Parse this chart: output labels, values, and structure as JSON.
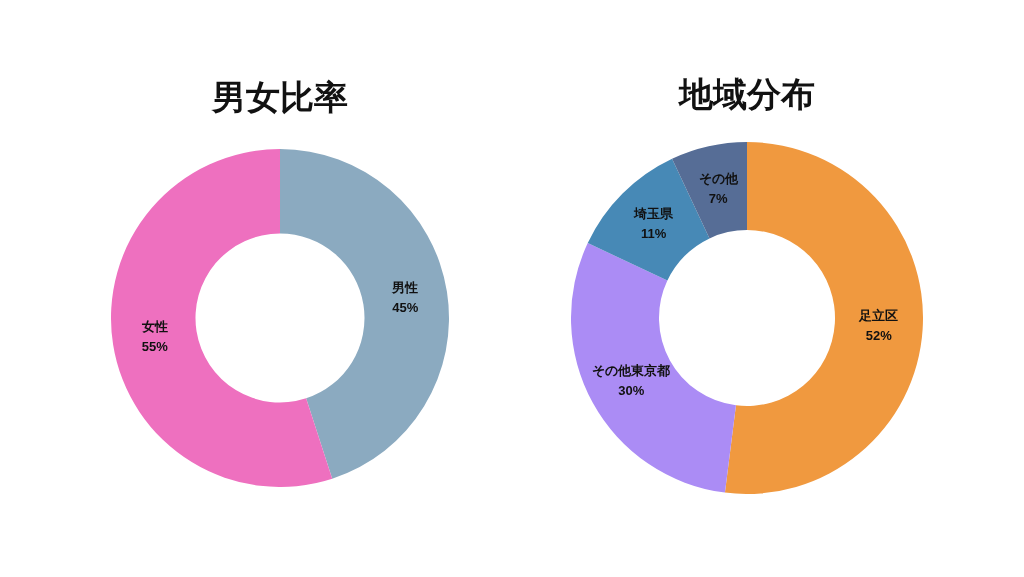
{
  "chart_data": [
    {
      "type": "donut",
      "title": "男女比率",
      "categories": [
        "男性",
        "女性"
      ],
      "values": [
        45,
        55
      ],
      "value_labels": [
        "45%",
        "55%"
      ],
      "colors": [
        "#8baac0",
        "#ee70bf"
      ],
      "legend": false
    },
    {
      "type": "donut",
      "title": "地域分布",
      "categories": [
        "足立区",
        "その他東京都",
        "埼玉県",
        "その他"
      ],
      "values": [
        52,
        30,
        11,
        7
      ],
      "value_labels": [
        "52%",
        "30%",
        "11%",
        "7%"
      ],
      "colors": [
        "#f0993f",
        "#ab8cf5",
        "#4789b6",
        "#566d96"
      ],
      "legend": false
    }
  ]
}
